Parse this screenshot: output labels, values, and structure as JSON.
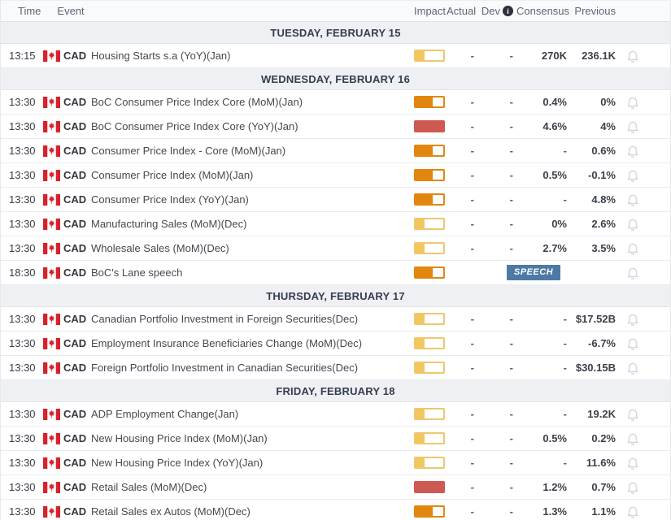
{
  "header": {
    "time": "Time",
    "event": "Event",
    "impact": "Impact",
    "actual": "Actual",
    "dev": "Dev",
    "info_icon": "i",
    "consensus": "Consensus",
    "previous": "Previous"
  },
  "colors": {
    "impact_low": "#f1c75e",
    "impact_low_border": "#eec76f",
    "impact_medium": "#e1870f",
    "impact_high": "#cd5a52",
    "speech_badge_bg": "#4d7aa5",
    "flag_red": "#d8222b",
    "day_header_bg": "#eef0f3",
    "bell_gray": "#d4d8de"
  },
  "impact_levels": {
    "low": {
      "fill_pct": 32,
      "color": "#f1c75e",
      "border": "#eec76f"
    },
    "medium": {
      "fill_pct": 62,
      "color": "#e1870f",
      "border": "#e1870f"
    },
    "high": {
      "fill_pct": 100,
      "color": "#cd5a52",
      "border": "#cd5a52"
    }
  },
  "speech_label": "SPEECH",
  "sections": [
    {
      "title": "TUESDAY, FEBRUARY 15",
      "rows": [
        {
          "time": "13:15",
          "currency": "CAD",
          "event": "Housing Starts s.a (YoY)(Jan)",
          "impact": "low",
          "actual": "-",
          "dev": "-",
          "consensus": "270K",
          "previous": "236.1K"
        }
      ]
    },
    {
      "title": "WEDNESDAY, FEBRUARY 16",
      "rows": [
        {
          "time": "13:30",
          "currency": "CAD",
          "event": "BoC Consumer Price Index Core (MoM)(Jan)",
          "impact": "medium",
          "actual": "-",
          "dev": "-",
          "consensus": "0.4%",
          "previous": "0%"
        },
        {
          "time": "13:30",
          "currency": "CAD",
          "event": "BoC Consumer Price Index Core (YoY)(Jan)",
          "impact": "high",
          "actual": "-",
          "dev": "-",
          "consensus": "4.6%",
          "previous": "4%"
        },
        {
          "time": "13:30",
          "currency": "CAD",
          "event": "Consumer Price Index - Core (MoM)(Jan)",
          "impact": "medium",
          "actual": "-",
          "dev": "-",
          "consensus": "-",
          "previous": "0.6%"
        },
        {
          "time": "13:30",
          "currency": "CAD",
          "event": "Consumer Price Index (MoM)(Jan)",
          "impact": "medium",
          "actual": "-",
          "dev": "-",
          "consensus": "0.5%",
          "previous": "-0.1%"
        },
        {
          "time": "13:30",
          "currency": "CAD",
          "event": "Consumer Price Index (YoY)(Jan)",
          "impact": "medium",
          "actual": "-",
          "dev": "-",
          "consensus": "-",
          "previous": "4.8%"
        },
        {
          "time": "13:30",
          "currency": "CAD",
          "event": "Manufacturing Sales (MoM)(Dec)",
          "impact": "low",
          "actual": "-",
          "dev": "-",
          "consensus": "0%",
          "previous": "2.6%"
        },
        {
          "time": "13:30",
          "currency": "CAD",
          "event": "Wholesale Sales (MoM)(Dec)",
          "impact": "low",
          "actual": "-",
          "dev": "-",
          "consensus": "2.7%",
          "previous": "3.5%"
        },
        {
          "time": "18:30",
          "currency": "CAD",
          "event": "BoC's Lane speech",
          "impact": "medium",
          "badge": "SPEECH"
        }
      ]
    },
    {
      "title": "THURSDAY, FEBRUARY 17",
      "rows": [
        {
          "time": "13:30",
          "currency": "CAD",
          "event": "Canadian Portfolio Investment in Foreign Securities(Dec)",
          "impact": "low",
          "actual": "-",
          "dev": "-",
          "consensus": "-",
          "previous": "$17.52B"
        },
        {
          "time": "13:30",
          "currency": "CAD",
          "event": "Employment Insurance Beneficiaries Change (MoM)(Dec)",
          "impact": "low",
          "actual": "-",
          "dev": "-",
          "consensus": "-",
          "previous": "-6.7%"
        },
        {
          "time": "13:30",
          "currency": "CAD",
          "event": "Foreign Portfolio Investment in Canadian Securities(Dec)",
          "impact": "low",
          "actual": "-",
          "dev": "-",
          "consensus": "-",
          "previous": "$30.15B"
        }
      ]
    },
    {
      "title": "FRIDAY, FEBRUARY 18",
      "rows": [
        {
          "time": "13:30",
          "currency": "CAD",
          "event": "ADP Employment Change(Jan)",
          "impact": "low",
          "actual": "-",
          "dev": "-",
          "consensus": "-",
          "previous": "19.2K"
        },
        {
          "time": "13:30",
          "currency": "CAD",
          "event": "New Housing Price Index (MoM)(Jan)",
          "impact": "low",
          "actual": "-",
          "dev": "-",
          "consensus": "0.5%",
          "previous": "0.2%"
        },
        {
          "time": "13:30",
          "currency": "CAD",
          "event": "New Housing Price Index (YoY)(Jan)",
          "impact": "low",
          "actual": "-",
          "dev": "-",
          "consensus": "-",
          "previous": "11.6%"
        },
        {
          "time": "13:30",
          "currency": "CAD",
          "event": "Retail Sales (MoM)(Dec)",
          "impact": "high",
          "actual": "-",
          "dev": "-",
          "consensus": "1.2%",
          "previous": "0.7%"
        },
        {
          "time": "13:30",
          "currency": "CAD",
          "event": "Retail Sales ex Autos (MoM)(Dec)",
          "impact": "medium",
          "actual": "-",
          "dev": "-",
          "consensus": "1.3%",
          "previous": "1.1%"
        }
      ]
    }
  ]
}
